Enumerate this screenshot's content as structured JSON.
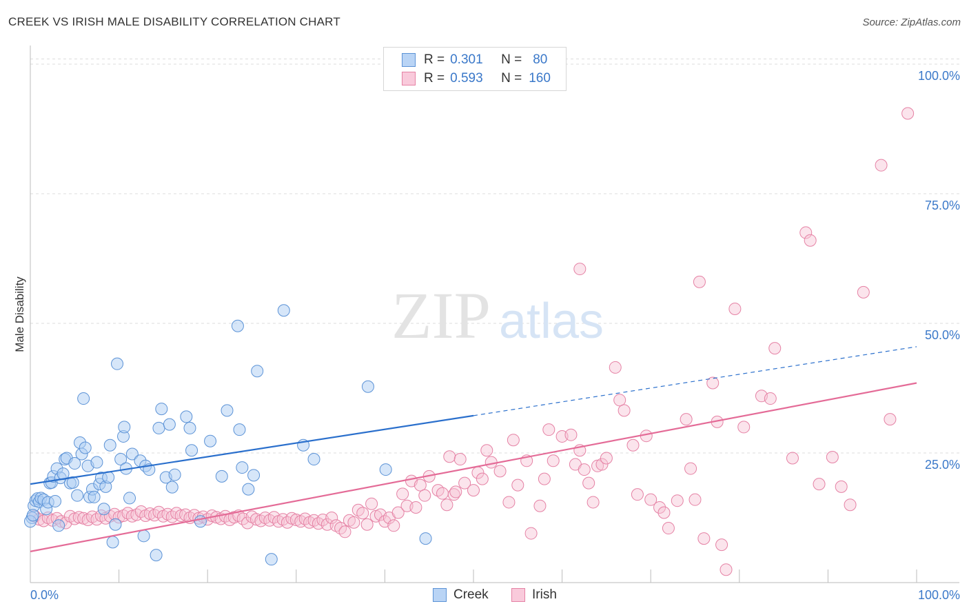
{
  "title": "CREEK VS IRISH MALE DISABILITY CORRELATION CHART",
  "source": "Source: ZipAtlas.com",
  "watermark": {
    "zip": "ZIP",
    "atlas": "atlas"
  },
  "legend": {
    "rows": [
      {
        "r_label": "R =",
        "r_value": "0.301",
        "n_label": "N =",
        "n_value": "80"
      },
      {
        "r_label": "R =",
        "r_value": "0.593",
        "n_label": "N =",
        "n_value": "160"
      }
    ]
  },
  "bottom_legend": {
    "creek": "Creek",
    "irish": "Irish"
  },
  "colors": {
    "creek_fill": "#aecdf3",
    "creek_stroke": "#5b92d6",
    "creek_line": "#2a6fcc",
    "irish_fill": "#f7c3d5",
    "irish_stroke": "#e581a4",
    "irish_line": "#e46b97",
    "axis_text": "#3a78c9",
    "grid": "#dddddd"
  },
  "chart_data": {
    "type": "scatter",
    "title": "CREEK VS IRISH MALE DISABILITY CORRELATION CHART",
    "xlabel": "",
    "ylabel": "Male Disability",
    "xlim": [
      0,
      100
    ],
    "ylim": [
      0,
      102
    ],
    "x_tick_labels": [
      "0.0%",
      "100.0%"
    ],
    "y_tick_values": [
      25,
      50,
      75,
      100
    ],
    "y_tick_labels": [
      "25.0%",
      "50.0%",
      "75.0%",
      "100.0%"
    ],
    "grid": "horizontal dashed",
    "legend_position": "top-center",
    "series": [
      {
        "name": "Creek",
        "r": 0.301,
        "n": 80,
        "trend": {
          "x": [
            0,
            50
          ],
          "y": [
            19,
            32.2
          ],
          "extended_to": [
            100,
            45.5
          ]
        },
        "points": [
          [
            0.2,
            12.5
          ],
          [
            0.4,
            14.8
          ],
          [
            0.6,
            15.8
          ],
          [
            0.8,
            16.2
          ],
          [
            1.0,
            15.6
          ],
          [
            1.2,
            16.3
          ],
          [
            1.5,
            16.0
          ],
          [
            1.8,
            14.2
          ],
          [
            2.0,
            15.5
          ],
          [
            2.2,
            19.2
          ],
          [
            2.4,
            19.3
          ],
          [
            2.6,
            20.5
          ],
          [
            2.8,
            15.7
          ],
          [
            3.0,
            22.0
          ],
          [
            3.2,
            11.0
          ],
          [
            3.4,
            20.2
          ],
          [
            3.7,
            21.0
          ],
          [
            3.9,
            23.8
          ],
          [
            4.1,
            24.0
          ],
          [
            4.5,
            19.2
          ],
          [
            4.8,
            19.3
          ],
          [
            5.0,
            23.0
          ],
          [
            5.3,
            16.8
          ],
          [
            5.6,
            27.0
          ],
          [
            5.8,
            24.8
          ],
          [
            6.0,
            35.5
          ],
          [
            6.2,
            26.0
          ],
          [
            6.5,
            22.5
          ],
          [
            6.7,
            16.5
          ],
          [
            7.0,
            18.0
          ],
          [
            7.2,
            16.5
          ],
          [
            7.5,
            23.2
          ],
          [
            7.8,
            19.0
          ],
          [
            8.0,
            20.2
          ],
          [
            8.3,
            14.2
          ],
          [
            8.5,
            18.5
          ],
          [
            8.8,
            20.3
          ],
          [
            9.0,
            26.5
          ],
          [
            9.3,
            7.8
          ],
          [
            9.6,
            11.2
          ],
          [
            9.8,
            42.2
          ],
          [
            10.2,
            23.8
          ],
          [
            10.5,
            28.2
          ],
          [
            10.6,
            30.0
          ],
          [
            10.8,
            22.0
          ],
          [
            11.2,
            16.3
          ],
          [
            11.5,
            24.8
          ],
          [
            12.4,
            23.5
          ],
          [
            12.8,
            9.0
          ],
          [
            13.0,
            22.5
          ],
          [
            13.4,
            21.8
          ],
          [
            14.2,
            5.3
          ],
          [
            14.5,
            29.8
          ],
          [
            14.8,
            33.5
          ],
          [
            15.3,
            20.3
          ],
          [
            15.7,
            30.5
          ],
          [
            16.0,
            18.4
          ],
          [
            16.3,
            20.8
          ],
          [
            17.6,
            32.0
          ],
          [
            18.0,
            29.8
          ],
          [
            18.2,
            25.5
          ],
          [
            19.2,
            11.8
          ],
          [
            20.3,
            27.3
          ],
          [
            21.6,
            20.5
          ],
          [
            22.2,
            33.2
          ],
          [
            23.4,
            49.5
          ],
          [
            23.6,
            29.5
          ],
          [
            23.9,
            22.2
          ],
          [
            24.6,
            18.0
          ],
          [
            25.2,
            20.7
          ],
          [
            25.6,
            40.8
          ],
          [
            27.2,
            4.5
          ],
          [
            28.6,
            52.5
          ],
          [
            30.8,
            26.5
          ],
          [
            32.0,
            23.8
          ],
          [
            38.1,
            37.8
          ],
          [
            40.1,
            21.8
          ],
          [
            44.6,
            8.5
          ],
          [
            0.0,
            11.8
          ],
          [
            0.3,
            13.0
          ]
        ]
      },
      {
        "name": "Irish",
        "r": 0.593,
        "n": 160,
        "trend": {
          "x": [
            0,
            100
          ],
          "y": [
            6,
            38.5
          ]
        },
        "points": [
          [
            0.5,
            12.8
          ],
          [
            1.0,
            12.2
          ],
          [
            1.5,
            11.9
          ],
          [
            2.0,
            12.5
          ],
          [
            2.5,
            12.0
          ],
          [
            3.0,
            12.4
          ],
          [
            3.5,
            11.8
          ],
          [
            4.0,
            11.5
          ],
          [
            4.5,
            12.8
          ],
          [
            5.0,
            12.3
          ],
          [
            5.5,
            12.6
          ],
          [
            6.0,
            12.4
          ],
          [
            6.5,
            12.1
          ],
          [
            7.0,
            12.7
          ],
          [
            7.5,
            12.2
          ],
          [
            8.0,
            12.9
          ],
          [
            8.5,
            12.4
          ],
          [
            9.0,
            12.8
          ],
          [
            9.5,
            13.2
          ],
          [
            10.0,
            12.6
          ],
          [
            10.5,
            12.9
          ],
          [
            11.0,
            13.4
          ],
          [
            11.5,
            12.8
          ],
          [
            12.0,
            13.1
          ],
          [
            12.5,
            13.7
          ],
          [
            13.0,
            12.9
          ],
          [
            13.5,
            13.3
          ],
          [
            14.0,
            13.0
          ],
          [
            14.5,
            13.6
          ],
          [
            15.0,
            12.8
          ],
          [
            15.5,
            13.2
          ],
          [
            16.0,
            12.7
          ],
          [
            16.5,
            13.4
          ],
          [
            17.0,
            12.9
          ],
          [
            17.5,
            13.1
          ],
          [
            18.0,
            12.5
          ],
          [
            18.5,
            13.0
          ],
          [
            19.0,
            12.4
          ],
          [
            19.5,
            12.7
          ],
          [
            20.0,
            12.2
          ],
          [
            20.5,
            12.9
          ],
          [
            21.0,
            12.6
          ],
          [
            21.5,
            12.3
          ],
          [
            22.0,
            12.8
          ],
          [
            22.5,
            12.1
          ],
          [
            23.0,
            12.6
          ],
          [
            23.5,
            12.9
          ],
          [
            24.0,
            12.3
          ],
          [
            24.5,
            11.5
          ],
          [
            25.0,
            12.7
          ],
          [
            25.5,
            12.2
          ],
          [
            26.0,
            11.9
          ],
          [
            26.5,
            12.5
          ],
          [
            27.0,
            12.0
          ],
          [
            27.5,
            12.6
          ],
          [
            28.0,
            11.8
          ],
          [
            28.5,
            12.2
          ],
          [
            29.0,
            11.6
          ],
          [
            29.5,
            12.4
          ],
          [
            30.0,
            12.1
          ],
          [
            30.5,
            11.8
          ],
          [
            31.0,
            12.3
          ],
          [
            31.5,
            11.6
          ],
          [
            32.0,
            12.0
          ],
          [
            32.5,
            11.4
          ],
          [
            33.0,
            12.1
          ],
          [
            33.5,
            11.2
          ],
          [
            34.0,
            12.5
          ],
          [
            34.5,
            11.0
          ],
          [
            35.0,
            10.5
          ],
          [
            35.5,
            9.8
          ],
          [
            36.0,
            12.0
          ],
          [
            36.5,
            11.6
          ],
          [
            37.0,
            14.0
          ],
          [
            37.5,
            13.4
          ],
          [
            38.0,
            11.2
          ],
          [
            38.5,
            15.2
          ],
          [
            39.0,
            12.8
          ],
          [
            39.5,
            13.1
          ],
          [
            40.0,
            11.8
          ],
          [
            40.5,
            12.5
          ],
          [
            41.0,
            11.0
          ],
          [
            41.5,
            13.5
          ],
          [
            42.0,
            17.1
          ],
          [
            42.5,
            14.8
          ],
          [
            43.0,
            19.6
          ],
          [
            43.5,
            14.5
          ],
          [
            44.0,
            18.8
          ],
          [
            44.5,
            16.8
          ],
          [
            45.0,
            20.5
          ],
          [
            46.0,
            17.8
          ],
          [
            46.5,
            17.2
          ],
          [
            47.0,
            15.0
          ],
          [
            47.3,
            24.3
          ],
          [
            47.8,
            17.0
          ],
          [
            48.0,
            17.5
          ],
          [
            48.5,
            23.8
          ],
          [
            49.0,
            19.2
          ],
          [
            50.0,
            17.8
          ],
          [
            50.5,
            21.2
          ],
          [
            51.0,
            20.0
          ],
          [
            51.5,
            25.5
          ],
          [
            52.0,
            23.2
          ],
          [
            53.0,
            21.5
          ],
          [
            54.0,
            15.5
          ],
          [
            54.5,
            27.5
          ],
          [
            55.0,
            18.8
          ],
          [
            56.0,
            23.5
          ],
          [
            56.5,
            9.5
          ],
          [
            57.5,
            14.8
          ],
          [
            58.0,
            20.0
          ],
          [
            58.5,
            29.5
          ],
          [
            59.0,
            23.5
          ],
          [
            60.0,
            28.2
          ],
          [
            61.0,
            28.5
          ],
          [
            61.5,
            22.8
          ],
          [
            62.0,
            25.5
          ],
          [
            62.5,
            21.8
          ],
          [
            63.0,
            19.2
          ],
          [
            63.5,
            15.5
          ],
          [
            64.0,
            22.5
          ],
          [
            64.5,
            22.8
          ],
          [
            65.0,
            24.0
          ],
          [
            66.0,
            41.5
          ],
          [
            66.5,
            35.2
          ],
          [
            67.0,
            33.2
          ],
          [
            68.0,
            26.5
          ],
          [
            68.5,
            17.0
          ],
          [
            69.5,
            28.3
          ],
          [
            70.0,
            16.0
          ],
          [
            71.0,
            14.5
          ],
          [
            71.5,
            13.5
          ],
          [
            72.0,
            10.5
          ],
          [
            73.0,
            15.8
          ],
          [
            74.0,
            31.5
          ],
          [
            74.5,
            22.0
          ],
          [
            75.0,
            16.0
          ],
          [
            76.0,
            8.5
          ],
          [
            77.0,
            38.5
          ],
          [
            77.5,
            31.0
          ],
          [
            78.0,
            7.3
          ],
          [
            78.5,
            2.5
          ],
          [
            79.5,
            52.8
          ],
          [
            80.5,
            30.0
          ],
          [
            82.5,
            36.0
          ],
          [
            83.5,
            35.5
          ],
          [
            84.0,
            45.2
          ],
          [
            86.0,
            24.0
          ],
          [
            87.5,
            67.5
          ],
          [
            88.0,
            66.0
          ],
          [
            89.0,
            19.0
          ],
          [
            90.5,
            24.2
          ],
          [
            91.5,
            18.5
          ],
          [
            92.5,
            15.0
          ],
          [
            94.0,
            56.0
          ],
          [
            96.0,
            80.5
          ],
          [
            97.0,
            31.5
          ],
          [
            99.0,
            90.5
          ],
          [
            75.5,
            58.0
          ],
          [
            62.0,
            60.5
          ]
        ]
      }
    ]
  }
}
